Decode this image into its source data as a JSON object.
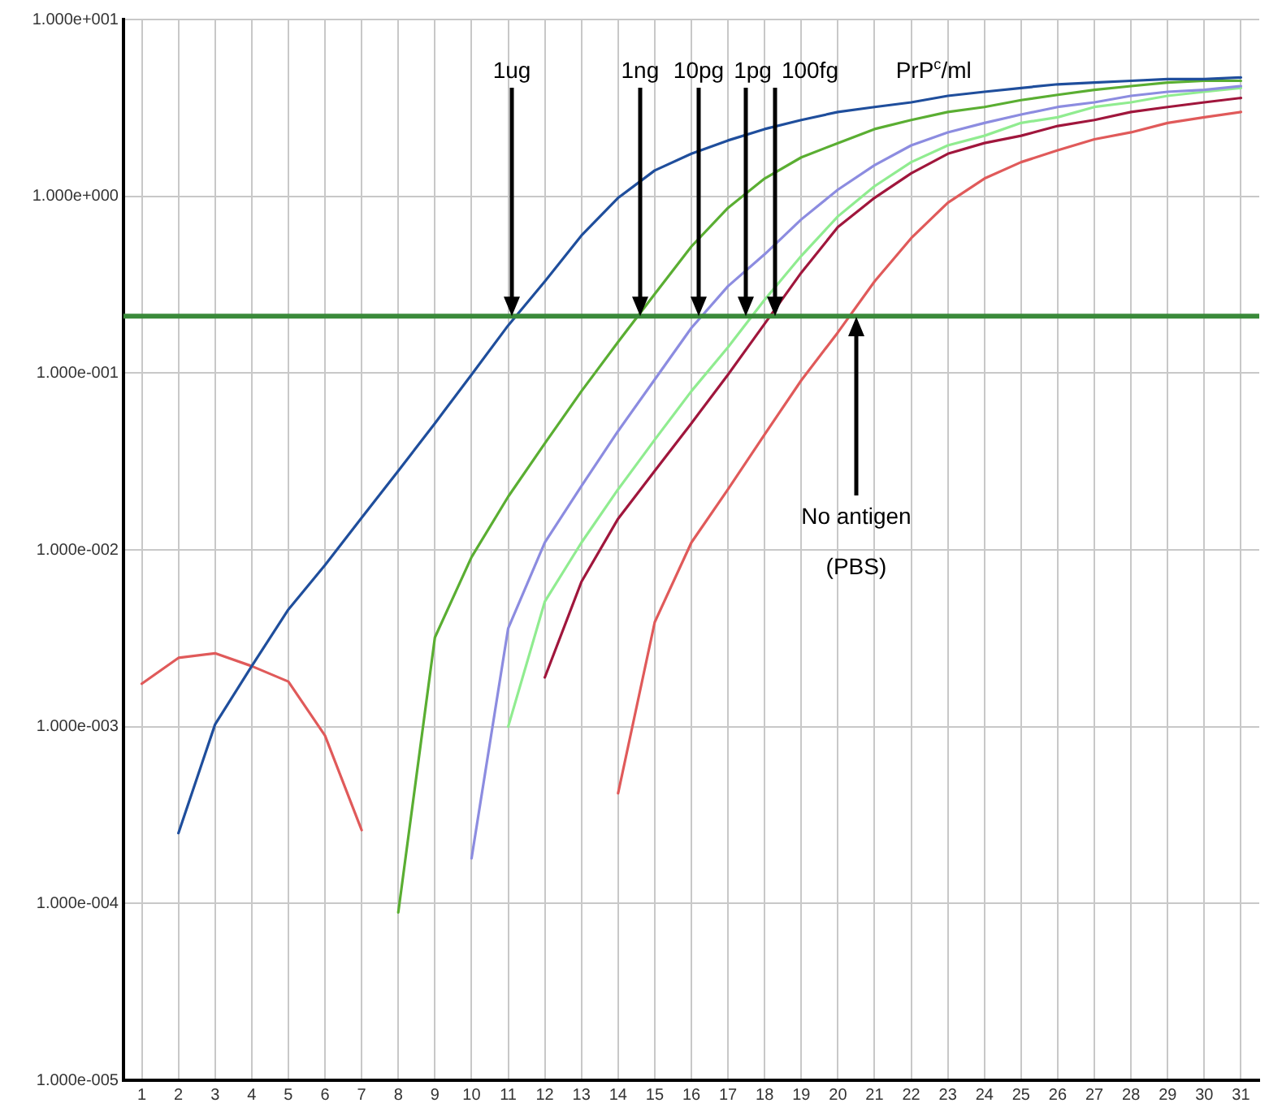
{
  "chart_data": {
    "type": "line",
    "x": [
      1,
      2,
      3,
      4,
      5,
      6,
      7,
      8,
      9,
      10,
      11,
      12,
      13,
      14,
      15,
      16,
      17,
      18,
      19,
      20,
      21,
      22,
      23,
      24,
      25,
      26,
      27,
      28,
      29,
      30,
      31
    ],
    "series": [
      {
        "color": "#1f4e9c",
        "values": [
          null,
          0.00025,
          0.00103,
          0.0022,
          0.0046,
          0.0082,
          0.0152,
          0.028,
          0.052,
          0.098,
          0.186,
          0.33,
          0.6,
          0.98,
          1.4,
          1.74,
          2.07,
          2.4,
          2.7,
          3.0,
          3.2,
          3.4,
          3.7,
          3.9,
          4.1,
          4.3,
          4.4,
          4.5,
          4.6,
          4.6,
          4.7
        ]
      },
      {
        "color": "#5aae32",
        "values": [
          null,
          null,
          null,
          null,
          null,
          null,
          null,
          8.9e-05,
          0.0032,
          0.0091,
          0.02,
          0.04,
          0.079,
          0.15,
          0.28,
          0.52,
          0.86,
          1.26,
          1.66,
          2.0,
          2.4,
          2.7,
          3.0,
          3.2,
          3.5,
          3.75,
          4.0,
          4.2,
          4.4,
          4.5,
          4.5
        ]
      },
      {
        "color": "#8c8ce0",
        "values": [
          null,
          null,
          null,
          null,
          null,
          null,
          null,
          null,
          null,
          0.00018,
          0.0036,
          0.011,
          0.023,
          0.047,
          0.092,
          0.18,
          0.31,
          0.47,
          0.74,
          1.09,
          1.5,
          1.94,
          2.3,
          2.6,
          2.9,
          3.2,
          3.4,
          3.7,
          3.9,
          4.0,
          4.2
        ]
      },
      {
        "color": "#90ec90",
        "values": [
          null,
          null,
          null,
          null,
          null,
          null,
          null,
          null,
          null,
          null,
          0.001,
          0.0051,
          0.011,
          0.022,
          0.042,
          0.079,
          0.14,
          0.26,
          0.46,
          0.77,
          1.14,
          1.56,
          1.94,
          2.2,
          2.6,
          2.8,
          3.2,
          3.4,
          3.7,
          3.9,
          4.1
        ]
      },
      {
        "color": "#a0163c",
        "values": [
          null,
          null,
          null,
          null,
          null,
          null,
          null,
          null,
          null,
          null,
          null,
          0.0019,
          0.0066,
          0.015,
          0.028,
          0.052,
          0.098,
          0.19,
          0.37,
          0.67,
          0.98,
          1.35,
          1.74,
          2.0,
          2.2,
          2.5,
          2.7,
          3.0,
          3.2,
          3.4,
          3.6
        ]
      },
      {
        "color": "#e05a5a",
        "values": [
          0.00175,
          0.00245,
          0.0026,
          0.0022,
          0.0018,
          0.00089,
          0.00026,
          null,
          null,
          null,
          null,
          null,
          null,
          0.00042,
          0.0039,
          0.011,
          0.022,
          0.045,
          0.091,
          0.17,
          0.33,
          0.58,
          0.92,
          1.26,
          1.56,
          1.82,
          2.1,
          2.3,
          2.6,
          2.8,
          3.0
        ]
      }
    ],
    "xlim": [
      0.5,
      31.5
    ],
    "xticks": [
      1,
      2,
      3,
      4,
      5,
      6,
      7,
      8,
      9,
      10,
      11,
      12,
      13,
      14,
      15,
      16,
      17,
      18,
      19,
      20,
      21,
      22,
      23,
      24,
      25,
      26,
      27,
      28,
      29,
      30,
      31
    ],
    "ylim": [
      1e-05,
      10
    ],
    "yticks": [
      {
        "value": 1e-05,
        "label": "1.000e-005"
      },
      {
        "value": 0.0001,
        "label": "1.000e-004"
      },
      {
        "value": 0.001,
        "label": "1.000e-003"
      },
      {
        "value": 0.01,
        "label": "1.000e-002"
      },
      {
        "value": 0.1,
        "label": "1.000e-001"
      },
      {
        "value": 1,
        "label": "1.000e+000"
      },
      {
        "value": 10,
        "label": "1.000e+001"
      }
    ],
    "log": "y",
    "grid": true,
    "legend": false,
    "marker": "none",
    "line_style": "solid",
    "ref_lines": [
      {
        "axis": "y",
        "value": 0.21,
        "color": "#3a8a3a"
      }
    ],
    "annotations": [
      {
        "text": "1ug",
        "x": 11.1,
        "y": 0.21
      },
      {
        "text": "1ng",
        "x": 14.6,
        "y": 0.21
      },
      {
        "text": "10pg",
        "x": 16.2,
        "y": 0.21
      },
      {
        "text": "1pg",
        "x": 17.5,
        "y": 0.21
      },
      {
        "text": "100fg",
        "x": 18.3,
        "y": 0.21
      },
      {
        "text": "No antigen\n(PBS)",
        "x": 20.5,
        "y": 0.21
      },
      "PrP$^{c}$/ml"
    ]
  }
}
